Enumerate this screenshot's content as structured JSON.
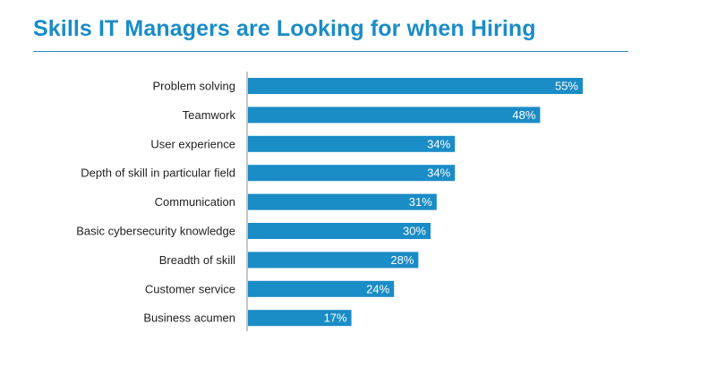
{
  "title": "Skills IT Managers are Looking for when Hiring",
  "colors": {
    "title": "#1a8cc6",
    "bar": "#1a8cc6",
    "axis": "#8c8c8c",
    "category_text": "#222222",
    "value_text": "#ffffff"
  },
  "chart_data": {
    "type": "bar",
    "orientation": "horizontal",
    "title": "Skills IT Managers are Looking for when Hiring",
    "categories": [
      "Problem solving",
      "Teamwork",
      "User experience",
      "Depth of skill in particular field",
      "Communication",
      "Basic cybersecurity knowledge",
      "Breadth of skill",
      "Customer service",
      "Business acumen"
    ],
    "values": [
      55,
      48,
      34,
      34,
      31,
      30,
      28,
      24,
      17
    ],
    "value_labels": [
      "55%",
      "48%",
      "34%",
      "34%",
      "31%",
      "30%",
      "28%",
      "24%",
      "17%"
    ],
    "unit": "%",
    "xlim": [
      0,
      100
    ],
    "grid": false,
    "legend": "none"
  }
}
